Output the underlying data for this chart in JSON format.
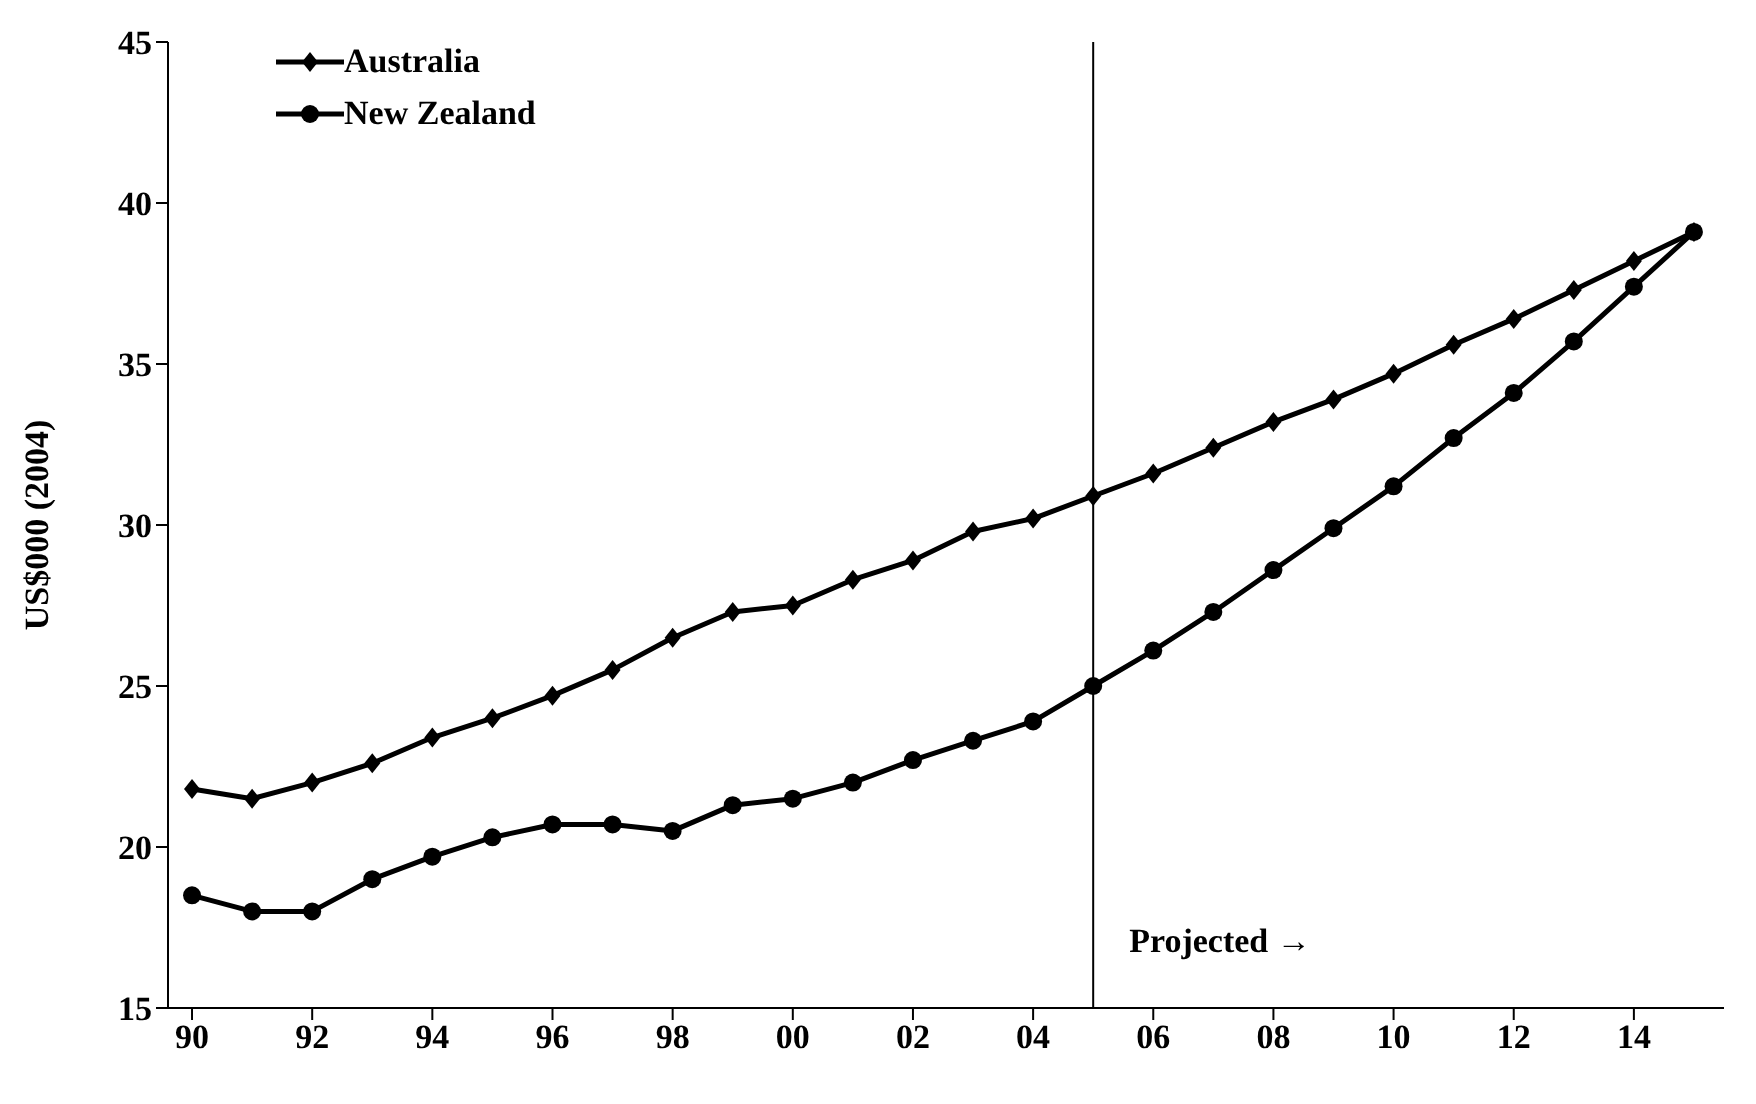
{
  "chart_data": {
    "type": "line",
    "ylabel": "US$000 (2004)",
    "x": [
      1990,
      1991,
      1992,
      1993,
      1994,
      1995,
      1996,
      1997,
      1998,
      1999,
      2000,
      2001,
      2002,
      2003,
      2004,
      2005,
      2006,
      2007,
      2008,
      2009,
      2010,
      2011,
      2012,
      2013,
      2014,
      2015
    ],
    "series": [
      {
        "name": "Australia",
        "color": "#000000",
        "marker": "diamond",
        "values": [
          21.8,
          21.5,
          22.0,
          22.6,
          23.4,
          24.0,
          24.7,
          25.5,
          26.5,
          27.3,
          27.5,
          28.3,
          28.9,
          29.8,
          30.2,
          30.9,
          31.6,
          32.4,
          33.2,
          33.9,
          34.7,
          35.6,
          36.4,
          37.3,
          38.2,
          39.1
        ]
      },
      {
        "name": "New Zealand",
        "color": "#000000",
        "marker": "circle",
        "values": [
          18.5,
          18.0,
          18.0,
          19.0,
          19.7,
          20.3,
          20.7,
          20.7,
          20.5,
          21.3,
          21.5,
          22.0,
          22.7,
          23.3,
          23.9,
          25.0,
          26.1,
          27.3,
          28.6,
          29.9,
          31.2,
          32.7,
          34.1,
          35.7,
          37.4,
          39.1
        ]
      }
    ],
    "xlim": [
      1989.6,
      2015.5
    ],
    "xticks": [
      {
        "value": 1990,
        "label": "90"
      },
      {
        "value": 1992,
        "label": "92"
      },
      {
        "value": 1994,
        "label": "94"
      },
      {
        "value": 1996,
        "label": "96"
      },
      {
        "value": 1998,
        "label": "98"
      },
      {
        "value": 2000,
        "label": "00"
      },
      {
        "value": 2002,
        "label": "02"
      },
      {
        "value": 2004,
        "label": "04"
      },
      {
        "value": 2006,
        "label": "06"
      },
      {
        "value": 2008,
        "label": "08"
      },
      {
        "value": 2010,
        "label": "10"
      },
      {
        "value": 2012,
        "label": "12"
      },
      {
        "value": 2014,
        "label": "14"
      }
    ],
    "ylim": [
      15,
      45
    ],
    "yticks": [
      15,
      20,
      25,
      30,
      35,
      40,
      45
    ],
    "ref_lines": [
      {
        "axis": "x",
        "value": 2005,
        "color": "#000000"
      }
    ],
    "annotations": [
      {
        "text": "Projected →",
        "x": 2005,
        "y": 17.1
      }
    ],
    "grid": false,
    "legend": "top left",
    "line_style": "solid"
  }
}
